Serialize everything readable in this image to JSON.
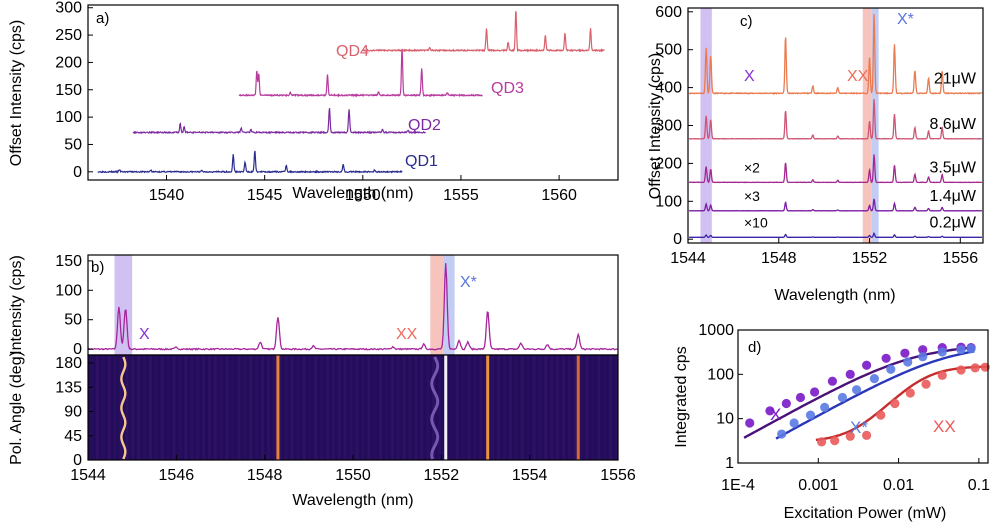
{
  "colors": {
    "QD1": "#2b2c8f",
    "QD2": "#7b2aa0",
    "QD3": "#b83b9e",
    "QD4": "#d9606c",
    "b_spec": "#a6269b",
    "X_band": "#c9b6f0",
    "XX_band": "#f5b8b2",
    "Xstar_band": "#b9c3f1",
    "X_label": "#8a30d6",
    "Xstar_label": "#5a74dc",
    "XX_label": "#ef6b5c",
    "heat_bg": "#230d5a",
    "p21": "#ea7b50",
    "p8_6": "#cf5574",
    "p3_5": "#a4288f",
    "p1_4": "#7d1ea5",
    "p0_2": "#3a25a6",
    "d_X": "#7a18c7",
    "d_Xfit": "#4a1278",
    "d_Xstar": "#5b7ae3",
    "d_Xstarfit": "#2a37b8",
    "d_XX": "#ea5a5a",
    "d_XXfit": "#c42e2e"
  },
  "chart_data": [
    {
      "panel": "a)",
      "type": "line",
      "title": "",
      "xlabel": "Wavelength (nm)",
      "ylabel": "Offset Intensity (cps)",
      "xlim": [
        1536,
        1563
      ],
      "ylim": [
        -15,
        305
      ],
      "xticks": [
        "1540",
        "1545",
        "1550",
        "1555",
        "1560"
      ],
      "yticks": [
        "0",
        "50",
        "100",
        "150",
        "200",
        "250",
        "300"
      ],
      "series": [
        {
          "name": "QD1",
          "key": "QD1",
          "offset": 0,
          "range": [
            1536.5,
            1552
          ],
          "peaks": [
            [
              1537.6,
              4
            ],
            [
              1539.2,
              3
            ],
            [
              1541.8,
              2
            ],
            [
              1543.4,
              32
            ],
            [
              1544.0,
              18
            ],
            [
              1544.5,
              40
            ],
            [
              1546.1,
              12
            ],
            [
              1549.0,
              14
            ],
            [
              1550.6,
              3
            ]
          ]
        },
        {
          "name": "QD2",
          "key": "QD2",
          "offset": 72,
          "range": [
            1538.3,
            1553.2
          ],
          "peaks": [
            [
              1540.7,
              17
            ],
            [
              1540.9,
              11
            ],
            [
              1543.8,
              8
            ],
            [
              1544.3,
              5
            ],
            [
              1548.3,
              45
            ],
            [
              1549.3,
              43
            ],
            [
              1551.0,
              5
            ],
            [
              1552.3,
              4
            ]
          ]
        },
        {
          "name": "QD3",
          "key": "QD3",
          "offset": 140,
          "range": [
            1543.7,
            1556.1
          ],
          "peaks": [
            [
              1544.6,
              45
            ],
            [
              1544.7,
              40
            ],
            [
              1546.3,
              5
            ],
            [
              1548.2,
              38
            ],
            [
              1550.8,
              6
            ],
            [
              1552.0,
              88
            ],
            [
              1553.0,
              50
            ],
            [
              1554.3,
              5
            ]
          ]
        },
        {
          "name": "QD4",
          "key": "QD4",
          "offset": 222,
          "range": [
            1550.0,
            1562.3
          ],
          "peaks": [
            [
              1553.4,
              5
            ],
            [
              1556.3,
              40
            ],
            [
              1557.4,
              15
            ],
            [
              1557.8,
              74
            ],
            [
              1559.3,
              28
            ],
            [
              1560.3,
              32
            ],
            [
              1561.6,
              40
            ]
          ]
        }
      ]
    },
    {
      "panel": "b)",
      "type": "line",
      "xlabel": "Wavelength (nm)",
      "ylabel_top": "Intensity (cps)",
      "ylabel_bottom": "Pol. Angle (deg)",
      "xlim": [
        1544,
        1556
      ],
      "ylim_top": [
        -10,
        160
      ],
      "ylim_bottom": [
        0,
        195
      ],
      "xticks": [
        "1544",
        "1546",
        "1548",
        "1550",
        "1552",
        "1554",
        "1556"
      ],
      "yticks_top": [
        "0",
        "50",
        "100",
        "150"
      ],
      "yticks_bottom": [
        "0",
        "45",
        "90",
        "135",
        "180"
      ],
      "bands": [
        {
          "label": "X",
          "range": [
            1544.6,
            1545.0
          ],
          "key": "X_band"
        },
        {
          "label": "XX",
          "range": [
            1551.75,
            1552.05
          ],
          "key": "XX_band"
        },
        {
          "label": "X*",
          "range": [
            1552.05,
            1552.3
          ],
          "key": "Xstar_band"
        }
      ],
      "labels": {
        "X": "X",
        "XX": "XX",
        "Xstar": "X*"
      },
      "peaks": [
        [
          1544.7,
          72
        ],
        [
          1544.85,
          70
        ],
        [
          1546.0,
          3
        ],
        [
          1547.9,
          12
        ],
        [
          1548.3,
          55
        ],
        [
          1549.1,
          5
        ],
        [
          1550.9,
          4
        ],
        [
          1551.6,
          8
        ],
        [
          1552.1,
          145
        ],
        [
          1552.4,
          15
        ],
        [
          1552.6,
          12
        ],
        [
          1553.05,
          65
        ],
        [
          1553.8,
          10
        ],
        [
          1554.4,
          8
        ],
        [
          1555.1,
          25
        ]
      ],
      "heatmap_lines": [
        1544.8,
        1548.3,
        1552.1,
        1553.05,
        1555.1
      ]
    },
    {
      "panel": "c)",
      "type": "line",
      "xlabel": "Wavelength (nm)",
      "ylabel": "Offset Intensity (cps)",
      "xlim": [
        1544,
        1557
      ],
      "ylim": [
        -10,
        610
      ],
      "xticks": [
        "1544",
        "1548",
        "1552",
        "1556"
      ],
      "yticks": [
        "0",
        "100",
        "200",
        "300",
        "400",
        "500",
        "600"
      ],
      "bands": [
        {
          "label": "X",
          "range": [
            1544.55,
            1545.05
          ],
          "key": "X_band"
        },
        {
          "label": "XX",
          "range": [
            1551.7,
            1552.1
          ],
          "key": "XX_band"
        },
        {
          "label": "X*",
          "range": [
            1552.1,
            1552.4
          ],
          "key": "Xstar_band"
        }
      ],
      "labels": {
        "X": "X",
        "XX": "XX",
        "Xstar": "X*"
      },
      "series": [
        {
          "name": "21μW",
          "key": "p21",
          "offset": 385,
          "scale": 1.0,
          "multiplier": ""
        },
        {
          "name": "8.6μW",
          "key": "p8_6",
          "offset": 265,
          "scale": 0.5,
          "multiplier": ""
        },
        {
          "name": "3.5μW",
          "key": "p3_5",
          "offset": 150,
          "scale": 0.35,
          "multiplier": "×2"
        },
        {
          "name": "1.4μW",
          "key": "p1_4",
          "offset": 75,
          "scale": 0.15,
          "multiplier": "×3"
        },
        {
          "name": "0.2μW",
          "key": "p0_2",
          "offset": 5,
          "scale": 0.05,
          "multiplier": "×10"
        }
      ],
      "peaks": [
        [
          1544.8,
          120
        ],
        [
          1545.0,
          100
        ],
        [
          1548.3,
          150
        ],
        [
          1549.5,
          20
        ],
        [
          1550.6,
          15
        ],
        [
          1552.0,
          95
        ],
        [
          1552.2,
          210
        ],
        [
          1553.1,
          130
        ],
        [
          1554.0,
          60
        ],
        [
          1554.6,
          40
        ],
        [
          1555.2,
          60
        ]
      ]
    },
    {
      "panel": "d)",
      "type": "scatter",
      "xlabel": "Excitation Power (mW)",
      "ylabel": "Integrated cps",
      "xscale": "log",
      "yscale": "log",
      "xlim": [
        0.0001,
        0.13
      ],
      "ylim": [
        1,
        1000
      ],
      "xticks": [
        {
          "v": 0.0001,
          "label": "1E-4"
        },
        {
          "v": 0.001,
          "label": "0.001"
        },
        {
          "v": 0.01,
          "label": "0.01"
        },
        {
          "v": 0.1,
          "label": "0.1"
        }
      ],
      "yticks": [
        {
          "v": 1,
          "label": "1"
        },
        {
          "v": 10,
          "label": "10"
        },
        {
          "v": 100,
          "label": "100"
        },
        {
          "v": 1000,
          "label": "1000"
        }
      ],
      "series": [
        {
          "name": "X",
          "key": "d_X",
          "fitkey": "d_Xfit",
          "points": [
            [
              0.00014,
              8
            ],
            [
              0.00025,
              15
            ],
            [
              0.0004,
              22
            ],
            [
              0.0006,
              30
            ],
            [
              0.0009,
              40
            ],
            [
              0.0015,
              70
            ],
            [
              0.0025,
              100
            ],
            [
              0.004,
              160
            ],
            [
              0.007,
              230
            ],
            [
              0.012,
              300
            ],
            [
              0.02,
              360
            ],
            [
              0.035,
              400
            ],
            [
              0.06,
              410
            ],
            [
              0.08,
              400
            ]
          ],
          "fit": {
            "A": 470,
            "ps": 0.015,
            "n": 1
          }
        },
        {
          "name": "X*",
          "key": "d_Xstar",
          "fitkey": "d_Xstarfit",
          "points": [
            [
              0.00035,
              4.5
            ],
            [
              0.0005,
              8
            ],
            [
              0.0008,
              12
            ],
            [
              0.0012,
              18
            ],
            [
              0.002,
              30
            ],
            [
              0.003,
              45
            ],
            [
              0.005,
              80
            ],
            [
              0.008,
              130
            ],
            [
              0.013,
              190
            ],
            [
              0.02,
              250
            ],
            [
              0.035,
              320
            ],
            [
              0.06,
              360
            ],
            [
              0.08,
              380
            ]
          ],
          "fit": {
            "A": 480,
            "ps": 0.04,
            "n": 1
          }
        },
        {
          "name": "XX",
          "key": "d_XX",
          "fitkey": "d_XXfit",
          "points": [
            [
              0.0011,
              3
            ],
            [
              0.0016,
              3.2
            ],
            [
              0.0025,
              4
            ],
            [
              0.004,
              4.2
            ],
            [
              0.006,
              12
            ],
            [
              0.009,
              22
            ],
            [
              0.014,
              38
            ],
            [
              0.022,
              60
            ],
            [
              0.035,
              95
            ],
            [
              0.06,
              125
            ],
            [
              0.09,
              140
            ],
            [
              0.12,
              145
            ]
          ],
          "fit": {
            "A": 150,
            "ps": 0.02,
            "n": 2,
            "base": 3
          }
        }
      ],
      "labels": {
        "X": "X",
        "Xstar": "X*",
        "XX": "XX"
      }
    }
  ]
}
